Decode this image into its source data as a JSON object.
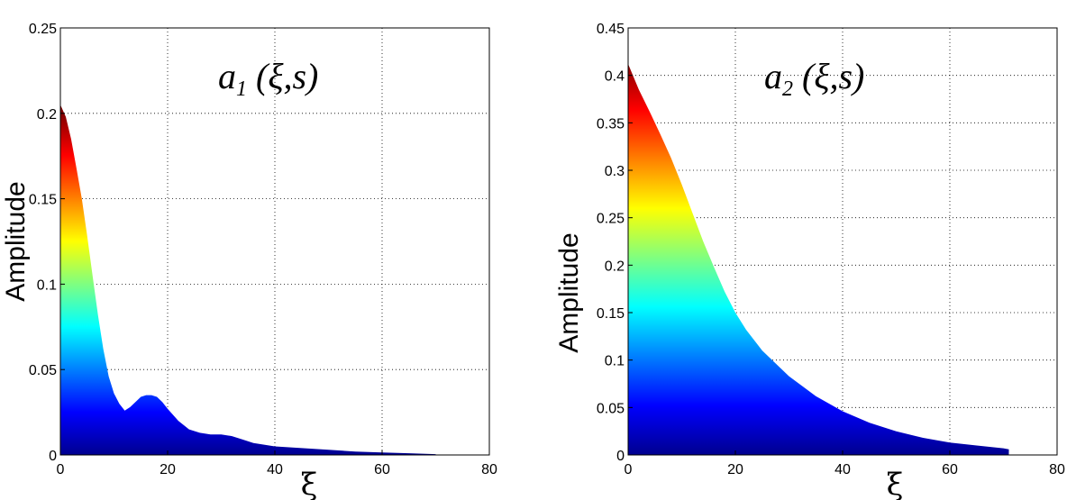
{
  "chart_data": [
    {
      "type": "area",
      "title_main": "a",
      "title_sub": "1",
      "title_args": " (ξ,s)",
      "xlabel": "ξ",
      "ylabel": "Amplitude",
      "xlim": [
        0,
        80
      ],
      "ylim": [
        0,
        0.25
      ],
      "xticks": [
        "0",
        "20",
        "40",
        "60",
        "80"
      ],
      "yticks": [
        "0",
        "0.05",
        "0.1",
        "0.15",
        "0.2",
        "0.25"
      ],
      "grid": true,
      "colormap": "jet",
      "x": [
        0,
        1,
        2,
        3,
        4,
        5,
        6,
        7,
        8,
        9,
        10,
        11,
        12,
        13,
        14,
        15,
        16,
        17,
        18,
        19,
        20,
        22,
        24,
        26,
        28,
        30,
        32,
        34,
        36,
        38,
        40,
        45,
        50,
        55,
        60,
        65,
        70
      ],
      "y": [
        0.205,
        0.198,
        0.185,
        0.168,
        0.15,
        0.128,
        0.105,
        0.082,
        0.062,
        0.046,
        0.036,
        0.03,
        0.026,
        0.028,
        0.031,
        0.034,
        0.035,
        0.035,
        0.034,
        0.031,
        0.027,
        0.02,
        0.015,
        0.013,
        0.012,
        0.012,
        0.011,
        0.009,
        0.007,
        0.006,
        0.005,
        0.004,
        0.003,
        0.002,
        0.0015,
        0.001,
        0.0005
      ]
    },
    {
      "type": "area",
      "title_main": "a",
      "title_sub": "2",
      "title_args": " (ξ,s)",
      "xlabel": "ξ",
      "ylabel": "Amplitude",
      "xlim": [
        0,
        80
      ],
      "ylim": [
        0,
        0.45
      ],
      "xticks": [
        "0",
        "20",
        "40",
        "60",
        "80"
      ],
      "yticks": [
        "0",
        "0.05",
        "0.1",
        "0.15",
        "0.2",
        "0.25",
        "0.3",
        "0.35",
        "0.4",
        "0.45"
      ],
      "grid": true,
      "colormap": "jet",
      "x": [
        0,
        2,
        4,
        6,
        8,
        10,
        12,
        14,
        16,
        18,
        20,
        22,
        25,
        30,
        35,
        40,
        45,
        50,
        55,
        60,
        65,
        70,
        71
      ],
      "y": [
        0.412,
        0.385,
        0.362,
        0.338,
        0.313,
        0.285,
        0.255,
        0.225,
        0.198,
        0.172,
        0.15,
        0.132,
        0.11,
        0.083,
        0.062,
        0.046,
        0.034,
        0.025,
        0.018,
        0.013,
        0.01,
        0.007,
        0.006
      ]
    }
  ]
}
